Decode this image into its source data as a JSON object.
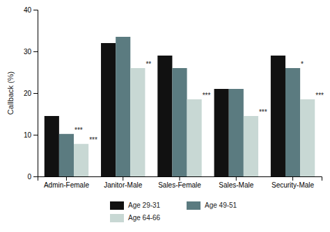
{
  "chart_data": {
    "type": "bar",
    "categories": [
      "Admin-Female",
      "Janitor-Male",
      "Sales-Female",
      "Sales-Male",
      "Security-Male"
    ],
    "series": [
      {
        "name": "Age 29-31",
        "color": "#111111",
        "values": [
          14.5,
          32.0,
          29.0,
          21.0,
          29.0
        ],
        "annotations": [
          null,
          null,
          null,
          null,
          null
        ]
      },
      {
        "name": "Age 49-51",
        "color": "#5b7b80",
        "values": [
          10.2,
          33.5,
          26.0,
          21.0,
          26.0
        ],
        "annotations": [
          "***",
          null,
          null,
          null,
          "*"
        ]
      },
      {
        "name": "Age 64-66",
        "color": "#c8d8d4",
        "values": [
          7.8,
          26.0,
          18.5,
          14.5,
          18.5
        ],
        "annotations": [
          "***",
          "**",
          "***",
          "***",
          "***"
        ]
      }
    ],
    "y_label": "Callback (%)",
    "ylim": [
      0,
      40
    ],
    "yticks": [
      0,
      10,
      20,
      30,
      40
    ],
    "grid": false,
    "legend": "bottom"
  }
}
